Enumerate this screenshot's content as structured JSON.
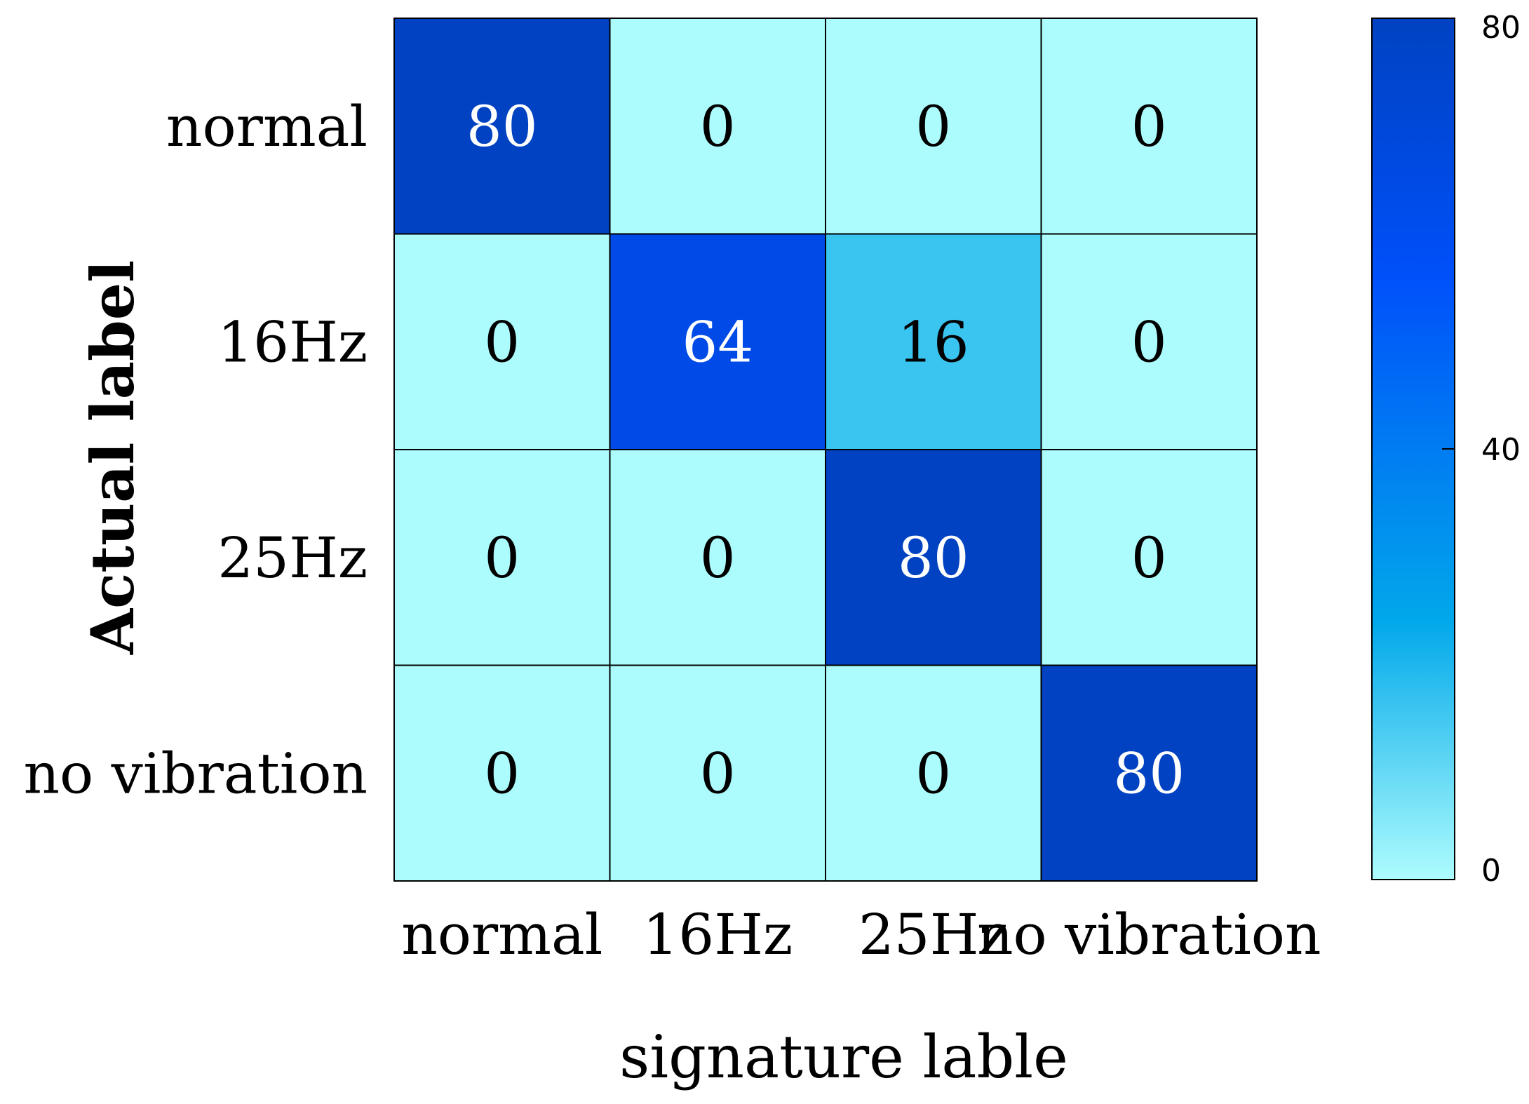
{
  "chart_data": {
    "type": "heatmap",
    "title": "",
    "xlabel": "signature lable",
    "ylabel": "Actual label",
    "x_categories": [
      "normal",
      "16Hz",
      "25Hz",
      "no vibration"
    ],
    "y_categories": [
      "normal",
      "16Hz",
      "25Hz",
      "no vibration"
    ],
    "values": [
      [
        80,
        0,
        0,
        0
      ],
      [
        0,
        64,
        16,
        0
      ],
      [
        0,
        0,
        80,
        0
      ],
      [
        0,
        0,
        0,
        80
      ]
    ],
    "colorbar": {
      "min": 0,
      "max": 80,
      "ticks": [
        0,
        40,
        80
      ],
      "tick_labels": [
        "0",
        "40",
        "80"
      ]
    },
    "colors": {
      "low": "#adfcfd",
      "mid": "#01a8ea",
      "high_mid": "#0050fa",
      "high": "#0042c1",
      "grid_line": "#000000",
      "text_dark": "#000000",
      "text_light": "#ffffff"
    },
    "grid": false,
    "legend": "colorbar-right"
  }
}
